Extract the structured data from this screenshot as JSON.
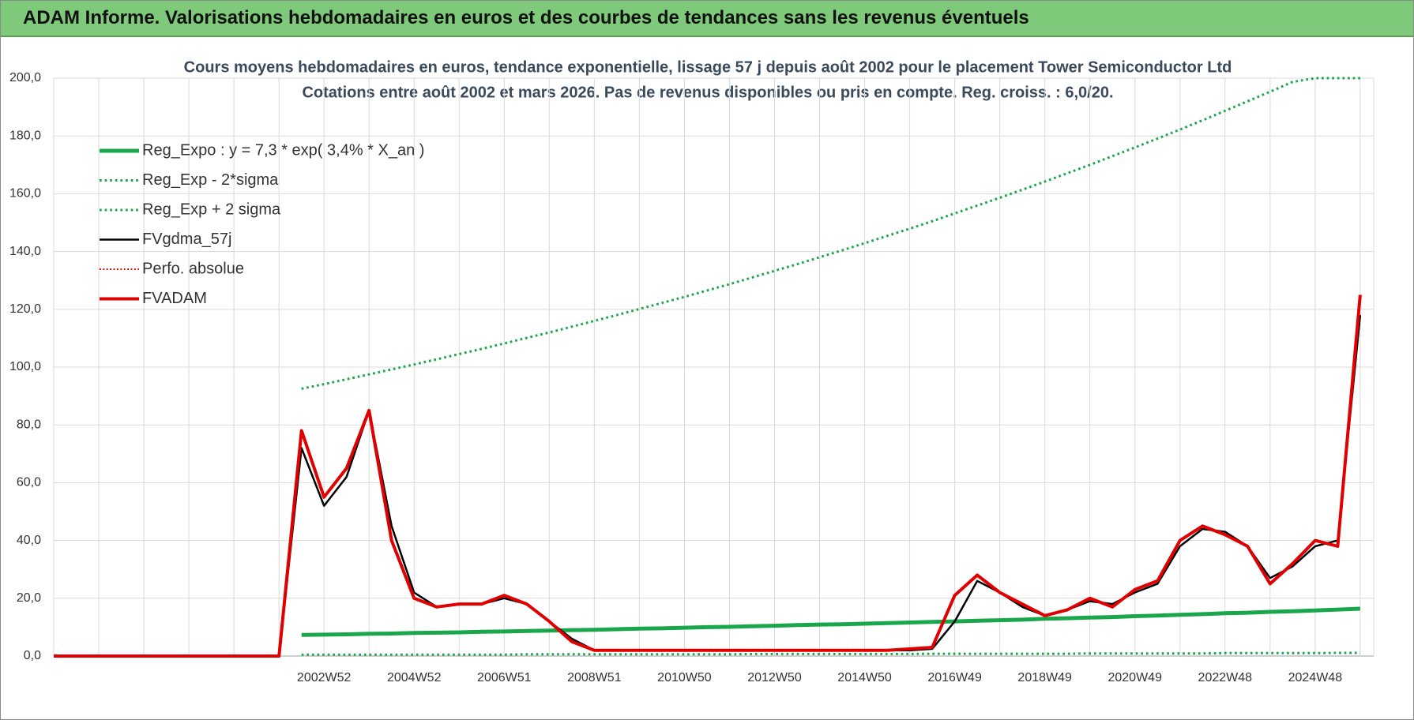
{
  "header": {
    "title": "ADAM Informe. Valorisations hebdomadaires en euros et des courbes de tendances sans les revenus éventuels"
  },
  "chart_data": {
    "type": "line",
    "title": "Cours moyens hebdomadaires en euros, tendance exponentielle, lissage 57 j depuis août 2002 pour le placement Tower Semiconductor Ltd",
    "subtitle": "Cotations entre août 2002 et mars 2026.  Pas de revenus disponibles ou pris en compte. Reg. croiss. : 6,0/20.",
    "categories": [
      null,
      null,
      null,
      null,
      null,
      null,
      null,
      null,
      null,
      null,
      null,
      null,
      "2002W52",
      null,
      null,
      null,
      "2004W52",
      null,
      null,
      null,
      "2006W51",
      null,
      null,
      null,
      "2008W51",
      null,
      null,
      null,
      "2010W50",
      null,
      null,
      null,
      "2012W50",
      null,
      null,
      null,
      "2014W50",
      null,
      null,
      null,
      "2016W49",
      null,
      null,
      null,
      "2018W49",
      null,
      null,
      null,
      "2020W49",
      null,
      null,
      null,
      "2022W48",
      null,
      null,
      null,
      "2024W48",
      null,
      null
    ],
    "ylim": [
      0,
      200
    ],
    "yticks": [
      {
        "value": 0,
        "label": "0,0"
      },
      {
        "value": 20,
        "label": "20,0"
      },
      {
        "value": 40,
        "label": "40,0"
      },
      {
        "value": 60,
        "label": "60,0"
      },
      {
        "value": 80,
        "label": "80,0"
      },
      {
        "value": 100,
        "label": "100,0"
      },
      {
        "value": 120,
        "label": "120,0"
      },
      {
        "value": 140,
        "label": "140,0"
      },
      {
        "value": 160,
        "label": "160,0"
      },
      {
        "value": 180,
        "label": "180,0"
      },
      {
        "value": 200,
        "label": "200,0"
      }
    ],
    "grid": true,
    "legend": "upper left",
    "series": [
      {
        "name": "Reg_Expo : y = 7,3 * exp( 3,4% *  X_an )",
        "color": "#1aa64a",
        "style": "solid",
        "width": 5,
        "values": [
          null,
          null,
          null,
          null,
          null,
          null,
          null,
          null,
          null,
          null,
          null,
          7.3,
          7.4,
          7.5,
          7.7,
          7.8,
          8.0,
          8.1,
          8.2,
          8.4,
          8.5,
          8.7,
          8.8,
          9.0,
          9.1,
          9.3,
          9.5,
          9.6,
          9.8,
          10.0,
          10.1,
          10.3,
          10.5,
          10.7,
          10.9,
          11.0,
          11.2,
          11.4,
          11.6,
          11.8,
          12.0,
          12.2,
          12.4,
          12.6,
          12.9,
          13.1,
          13.3,
          13.5,
          13.8,
          14.0,
          14.3,
          14.5,
          14.8,
          15.0,
          15.3,
          15.5,
          15.8,
          16.1,
          16.4
        ]
      },
      {
        "name": "Reg_Exp - 2*sigma",
        "color": "#1aa64a",
        "style": "dotted",
        "width": 3,
        "values": [
          null,
          null,
          null,
          null,
          null,
          null,
          null,
          null,
          null,
          null,
          null,
          0.5,
          0.5,
          0.5,
          0.5,
          0.5,
          0.5,
          0.5,
          0.5,
          0.5,
          0.5,
          0.6,
          0.6,
          0.6,
          0.6,
          0.6,
          0.6,
          0.6,
          0.6,
          0.6,
          0.6,
          0.7,
          0.7,
          0.7,
          0.7,
          0.7,
          0.7,
          0.7,
          0.7,
          0.8,
          0.8,
          0.8,
          0.8,
          0.8,
          0.8,
          0.8,
          0.9,
          0.9,
          0.9,
          0.9,
          0.9,
          0.9,
          1.0,
          1.0,
          1.0,
          1.0,
          1.0,
          1.1,
          1.1
        ]
      },
      {
        "name": "Reg_Exp + 2 sigma",
        "color": "#1aa64a",
        "style": "dotted",
        "width": 3,
        "values": [
          null,
          null,
          null,
          null,
          null,
          null,
          null,
          null,
          null,
          null,
          null,
          92.5,
          94.1,
          95.8,
          97.5,
          99.2,
          100.9,
          102.7,
          104.5,
          106.3,
          108.2,
          110.1,
          112.0,
          114.0,
          116.0,
          118.0,
          120.1,
          122.2,
          124.3,
          126.5,
          128.7,
          131.0,
          133.3,
          135.6,
          138.0,
          140.4,
          142.9,
          145.4,
          147.9,
          150.5,
          153.2,
          155.9,
          158.6,
          161.4,
          164.2,
          167.1,
          170.0,
          173.0,
          176.0,
          179.1,
          182.2,
          185.4,
          188.7,
          192.0,
          195.3,
          198.7,
          200.0,
          200.0,
          200.0
        ]
      },
      {
        "name": "FVgdma_57j",
        "color": "#000000",
        "style": "solid",
        "width": 2.5,
        "values": [
          0,
          0,
          0,
          0,
          0,
          0,
          0,
          0,
          0,
          0,
          0,
          72,
          52,
          62,
          85,
          45,
          22,
          17,
          18,
          18,
          20,
          18,
          12,
          6,
          2,
          2,
          2,
          2,
          2,
          2,
          2,
          2,
          2,
          2,
          2,
          2,
          2,
          2,
          2,
          2.5,
          12,
          26,
          22,
          17,
          14,
          16,
          19,
          18,
          22,
          25,
          38,
          44,
          43,
          38,
          27,
          31,
          38,
          40,
          118
        ]
      },
      {
        "name": "Perfo. absolue",
        "color": "#e00000",
        "style": "dotted",
        "width": 2,
        "values": [
          0,
          0,
          0,
          0,
          0,
          0,
          0,
          0,
          0,
          0,
          0,
          null,
          null,
          null,
          null,
          null,
          null,
          null,
          null,
          null,
          null,
          null,
          null,
          null,
          null,
          null,
          null,
          null,
          null,
          null,
          null,
          null,
          null,
          null,
          null,
          null,
          null,
          null,
          null,
          null,
          null,
          null,
          null,
          null,
          null,
          null,
          null,
          null,
          null,
          null,
          null,
          null,
          null,
          null,
          null,
          null,
          null,
          null,
          null
        ]
      },
      {
        "name": "FVADAM",
        "color": "#e00000",
        "style": "solid",
        "width": 4,
        "values": [
          0,
          0,
          0,
          0,
          0,
          0,
          0,
          0,
          0,
          0,
          0,
          78,
          55,
          65,
          85,
          40,
          20,
          17,
          18,
          18,
          21,
          18,
          12,
          5,
          2,
          2,
          2,
          2,
          2,
          2,
          2,
          2,
          2,
          2,
          2,
          2,
          2,
          2,
          2.5,
          3,
          21,
          28,
          22,
          18,
          14,
          16,
          20,
          17,
          23,
          26,
          40,
          45,
          42,
          38,
          25,
          32,
          40,
          38,
          125
        ]
      }
    ]
  }
}
